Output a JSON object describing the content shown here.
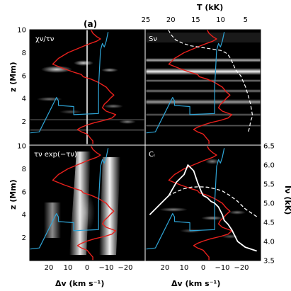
{
  "figure": {
    "panel_label": "(a)",
    "top_axis_label": "T (kK)",
    "top_ticks": [
      "25",
      "20",
      "15",
      "10",
      "5"
    ],
    "left_ylabel": "z (Mm)",
    "right_ylabel": "Iν (kK)",
    "xlabel": "Δv (km s⁻¹)",
    "x_ticks": [
      "20",
      "10",
      "0",
      "−10",
      "−20"
    ],
    "z_ticks": [
      "2",
      "4",
      "6",
      "8",
      "10"
    ],
    "I_ticks": [
      "3.5",
      "4.0",
      "4.5",
      "5.0",
      "5.5",
      "6.0",
      "6.5"
    ]
  },
  "panels": [
    {
      "id": "tl",
      "label": "χν/τν"
    },
    {
      "id": "tr",
      "label": "Sν"
    },
    {
      "id": "bl",
      "label": "τν exp(−τν)"
    },
    {
      "id": "br",
      "label": "Cᵢ"
    }
  ],
  "colors": {
    "background": "#000000",
    "tau_unity_curve": "#e8201c",
    "velocity_curve": "#2fa6d8",
    "profile_curve": "#ffffff"
  },
  "chart_data": {
    "type": "line",
    "x_range": [
      30,
      -30
    ],
    "z_range": [
      0,
      10
    ],
    "T_range": [
      25,
      2
    ],
    "I_range": [
      3.5,
      6.5
    ],
    "series": [
      {
        "x": [
          -2,
          -3,
          -5,
          -7,
          -5,
          0,
          10,
          15,
          18,
          12,
          7,
          3,
          2,
          -2,
          -6,
          -10,
          -12,
          -14,
          -12,
          -11,
          -9,
          -8,
          -10,
          -15,
          -13,
          -9,
          -4,
          0,
          3,
          5,
          3,
          0,
          -1,
          -2,
          -3,
          -3
        ],
        "z": [
          10,
          9.7,
          9.4,
          9.2,
          9,
          8.7,
          8.0,
          7.5,
          7.0,
          6.6,
          6.3,
          6.1,
          5.9,
          5.7,
          5.4,
          5.0,
          4.6,
          4.3,
          4.0,
          3.8,
          3.5,
          3.2,
          2.9,
          2.6,
          2.3,
          2.1,
          1.9,
          1.7,
          1.5,
          1.3,
          1.1,
          0.9,
          0.7,
          0.5,
          0.3,
          0.05
        ]
      },
      {
        "x": [
          -11,
          -10,
          -9,
          -8,
          -7,
          -6,
          -6,
          7,
          7,
          15,
          15,
          16,
          25,
          30
        ],
        "z": [
          9.8,
          9.0,
          8.5,
          8.8,
          8.2,
          5.0,
          2.7,
          2.6,
          3.3,
          3.4,
          3.8,
          4.1,
          1.1,
          1.0
        ]
      },
      {
        "x": [
          -28,
          -22,
          -18,
          -15,
          -13,
          -11,
          -10,
          -8,
          -6,
          -4,
          -2,
          0,
          1,
          3,
          5,
          8,
          10,
          14,
          18,
          22,
          25,
          28
        ],
        "I": [
          3.75,
          3.85,
          4.0,
          4.3,
          4.45,
          4.55,
          4.7,
          4.9,
          5.0,
          5.05,
          5.15,
          5.2,
          5.3,
          5.55,
          5.85,
          6.0,
          5.75,
          5.55,
          5.2,
          5.0,
          4.85,
          4.7
        ]
      },
      {
        "x": [
          -28,
          -22,
          -18,
          -14,
          -10,
          -6,
          -2,
          2,
          6,
          10,
          14,
          18,
          22,
          26,
          28
        ],
        "I": [
          4.65,
          4.85,
          5.05,
          5.2,
          5.32,
          5.38,
          5.42,
          5.43,
          5.42,
          5.38,
          5.3,
          5.2,
          5.0,
          4.8,
          4.7
        ]
      },
      {
        "T": [
          20.5,
          20.0,
          19.0,
          17.5,
          16.0,
          14.5,
          13.0,
          11.5,
          10.0,
          9.0,
          8.5,
          8.0,
          7.5,
          7.0,
          6.0,
          5.0,
          4.3,
          4.0,
          3.6,
          4.0,
          4.2,
          4.5
        ],
        "z": [
          10,
          9.6,
          9.1,
          8.8,
          8.6,
          8.5,
          8.4,
          8.3,
          8.2,
          8.0,
          7.8,
          7.5,
          7.0,
          6.5,
          6.0,
          5.0,
          4.0,
          3.5,
          2.5,
          2.0,
          1.5,
          1.0
        ]
      }
    ]
  }
}
